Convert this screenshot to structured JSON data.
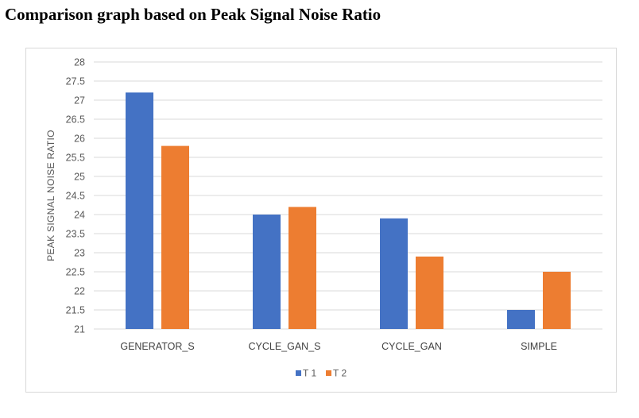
{
  "page": {
    "title": "Comparison graph based on Peak Signal Noise Ratio"
  },
  "chart_data": {
    "type": "bar",
    "title": "",
    "xlabel": "",
    "ylabel": "PEAK SIGNAL NOISE RATIO",
    "categories": [
      "GENERATOR_S",
      "CYCLE_GAN_S",
      "CYCLE_GAN",
      "SIMPLE"
    ],
    "series": [
      {
        "name": "T 1",
        "color": "#4472c4",
        "values": [
          27.2,
          24.0,
          23.9,
          21.5
        ]
      },
      {
        "name": "T 2",
        "color": "#ed7d31",
        "values": [
          25.8,
          24.2,
          22.9,
          22.5
        ]
      }
    ],
    "ylim": [
      21,
      28
    ],
    "yticks": [
      "21",
      "21.5",
      "22",
      "22.5",
      "23",
      "23.5",
      "24",
      "24.5",
      "25",
      "25.5",
      "26",
      "26.5",
      "27",
      "27.5",
      "28"
    ],
    "grid": true,
    "legend_position": "bottom",
    "gridline_color": "#d9d9d9"
  }
}
